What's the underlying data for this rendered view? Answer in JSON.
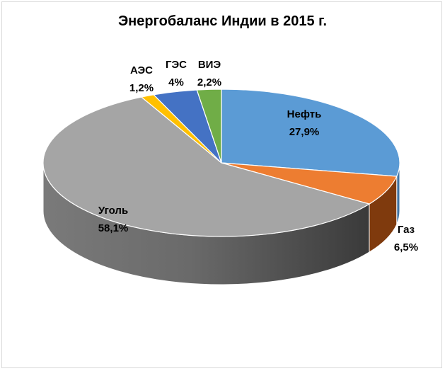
{
  "chart_data": {
    "type": "pie",
    "title": "Энергобаланс Индии в 2015 г.",
    "slices": [
      {
        "label": "Нефть",
        "value_text": "27,9%",
        "value": 27.9,
        "color": "#5b9bd5",
        "side_color": "#3f73a3"
      },
      {
        "label": "Газ",
        "value_text": "6,5%",
        "value": 6.5,
        "color": "#ed7d31",
        "side_color": "#7f3a0d"
      },
      {
        "label": "Уголь",
        "value_text": "58,1%",
        "value": 58.1,
        "color": "#a5a5a5",
        "side_color": "#6b6b6b"
      },
      {
        "label": "АЭС",
        "value_text": "1,2%",
        "value": 1.2,
        "color": "#ffc000",
        "side_color": "#b38600"
      },
      {
        "label": "ГЭС",
        "value_text": "4%",
        "value": 4.0,
        "color": "#4472c4",
        "side_color": "#2f5597"
      },
      {
        "label": "ВИЭ",
        "value_text": "2,2%",
        "value": 2.2,
        "color": "#70ad47",
        "side_color": "#4e7a31"
      }
    ],
    "legend": "none",
    "style": "3d-pie"
  }
}
